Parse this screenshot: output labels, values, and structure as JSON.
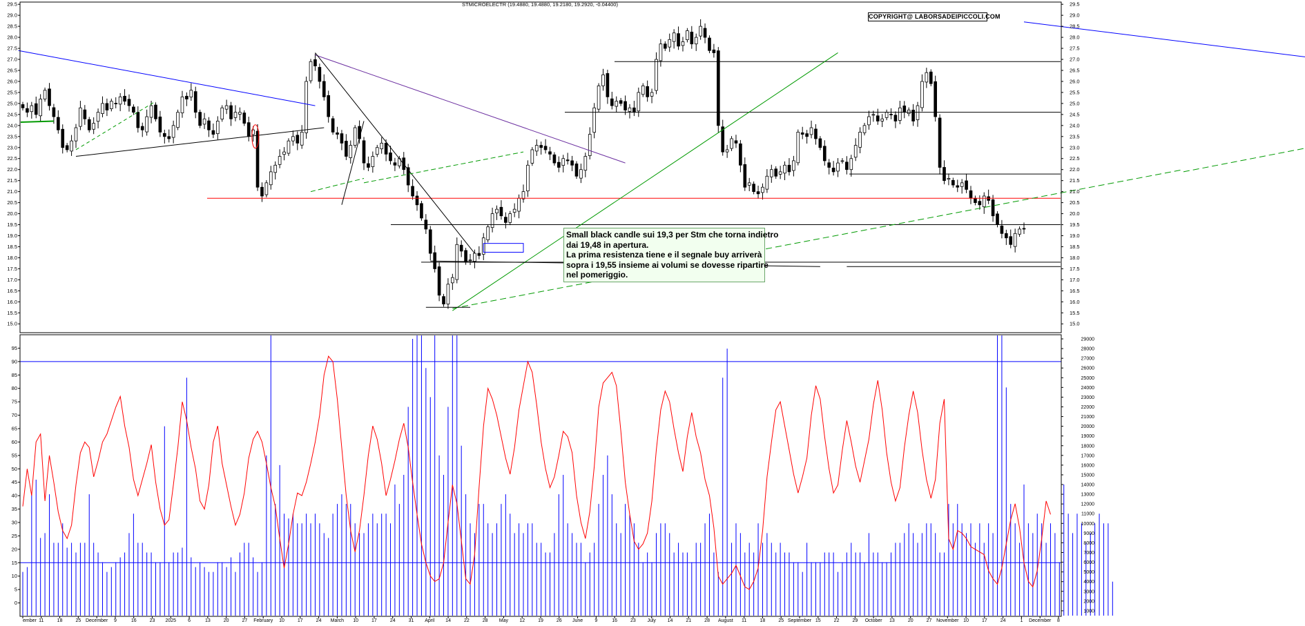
{
  "header": {
    "title": "STMICROELECTR (19.4880, 19.4880, 19.2180, 19.2920, -0.04400)",
    "copyright": "COPYRIGHT@ LABORSADEIPICCOLI.COM"
  },
  "annotation": {
    "lines": [
      "Small black candle sui 19,3 per Stm che torna indietro",
      "dai 19,48 in apertura.",
      "La prima resistenza tiene e il segnale buy arriverà",
      "sopra i 19,55 insieme ai volumi se dovesse ripartire",
      "nel pomeriggio."
    ]
  },
  "colors": {
    "candle": "#000000",
    "indicator": "#ff0000",
    "volume": "#0000ff",
    "trend_blue": "#0000ff",
    "trend_purple": "#6b2fa0",
    "support_green": "#009a00",
    "red_level": "#ff0000",
    "grid": "#dddddd"
  },
  "chart_data": [
    {
      "type": "candlestick",
      "title": "STMICROELECTR (19.4880, 19.4880, 19.2180, 19.2920, -0.04400)",
      "ylim": [
        14.6,
        29.6
      ],
      "y_ticks": [
        15.0,
        15.5,
        16.0,
        16.5,
        17.0,
        17.5,
        18.0,
        18.5,
        19.0,
        19.5,
        20.0,
        20.5,
        21.0,
        21.5,
        22.0,
        22.5,
        23.0,
        23.5,
        24.0,
        24.5,
        25.0,
        25.5,
        26.0,
        26.5,
        27.0,
        27.5,
        28.0,
        28.5,
        29.0,
        29.5
      ],
      "y_tick_labels": [
        "15.0",
        "15.5",
        "16.0",
        "16.5",
        "17.0",
        "17.5",
        "18.0",
        "18.5",
        "19.0",
        "19.5",
        "20.0",
        "20.5",
        "21.0",
        "21.5",
        "22.0",
        "22.5",
        "23.0",
        "23.5",
        "24.0",
        "24.5",
        "25.0",
        "25.5",
        "26.0",
        "26.5",
        "27.0",
        "27.5",
        "28.0",
        "28.5",
        "29.0",
        "29.5"
      ],
      "x_labels": [
        "ember",
        "11",
        "18",
        "25",
        "December",
        "9",
        "16",
        "23",
        "2025",
        "6",
        "13",
        "20",
        "27",
        "February",
        "10",
        "17",
        "24",
        "March",
        "10",
        "17",
        "24",
        "31",
        "April",
        "14",
        "22",
        "28",
        "May",
        "12",
        "19",
        "26",
        "June",
        "9",
        "16",
        "23",
        "July",
        "14",
        "21",
        "28",
        "August",
        "11",
        "18",
        "25",
        "September",
        "15",
        "22",
        "29",
        "October",
        "13",
        "20",
        "27",
        "November",
        "10",
        "17",
        "24",
        "1",
        "December",
        "8"
      ],
      "closes": [
        24.8,
        24.6,
        24.9,
        24.5,
        25.2,
        25.6,
        24.9,
        24.4,
        23.8,
        23.0,
        22.9,
        23.3,
        23.9,
        24.8,
        24.3,
        23.8,
        24.1,
        24.6,
        25.0,
        24.7,
        25.1,
        25.0,
        25.3,
        25.1,
        24.9,
        24.6,
        23.9,
        23.8,
        24.4,
        24.9,
        24.3,
        23.7,
        23.5,
        23.4,
        24.0,
        24.6,
        25.3,
        25.2,
        25.6,
        24.6,
        24.0,
        24.3,
        23.8,
        23.6,
        24.2,
        24.8,
        24.9,
        24.3,
        24.6,
        24.6,
        24.1,
        23.5,
        23.8,
        21.2,
        20.8,
        21.4,
        21.9,
        22.2,
        22.6,
        22.8,
        23.3,
        23.5,
        23.2,
        23.7,
        26.0,
        26.9,
        26.7,
        26.0,
        25.3,
        24.4,
        23.7,
        23.6,
        23.2,
        22.6,
        23.1,
        23.9,
        23.4,
        22.3,
        22.1,
        22.6,
        23.0,
        23.2,
        22.7,
        22.4,
        22.2,
        22.5,
        22.0,
        21.3,
        20.8,
        20.4,
        19.8,
        19.3,
        18.2,
        17.5,
        16.3,
        15.9,
        16.8,
        17.1,
        18.6,
        18.3,
        17.8,
        17.9,
        18.2,
        18.1,
        18.9,
        19.4,
        20.0,
        20.2,
        19.9,
        19.6,
        20.0,
        20.2,
        20.7,
        21.0,
        22.2,
        22.9,
        23.1,
        23.0,
        22.9,
        22.7,
        22.3,
        22.1,
        22.5,
        22.4,
        22.2,
        21.7,
        22.0,
        22.6,
        23.6,
        24.8,
        25.8,
        26.3,
        25.3,
        24.9,
        25.1,
        25.0,
        24.7,
        24.8,
        24.6,
        25.5,
        25.8,
        25.3,
        25.5,
        27.0,
        27.7,
        27.5,
        27.9,
        28.2,
        27.6,
        27.8,
        28.3,
        27.7,
        28.0,
        28.5,
        28.0,
        27.4,
        27.3,
        24.0,
        22.8,
        22.9,
        23.4,
        23.2,
        22.2,
        21.2,
        21.4,
        21.0,
        20.9,
        21.2,
        21.7,
        22.0,
        21.7,
        21.9,
        22.2,
        21.9,
        22.4,
        23.7,
        23.6,
        23.5,
        23.9,
        23.4,
        23.0,
        22.4,
        22.1,
        21.9,
        22.3,
        22.4,
        22.0,
        22.5,
        23.1,
        23.7,
        24.0,
        24.4,
        24.5,
        24.2,
        24.3,
        24.6,
        24.5,
        24.2,
        24.8,
        24.6,
        24.7,
        24.2,
        24.9,
        26.0,
        26.4,
        25.9,
        24.4,
        22.1,
        21.5,
        21.6,
        21.3,
        21.2,
        21.4,
        21.1,
        20.7,
        20.5,
        20.4,
        20.8,
        20.6,
        19.9,
        19.5,
        19.1,
        18.9,
        18.6,
        19.1,
        19.3,
        19.3
      ],
      "horizontal_levels": [
        {
          "value": 26.9,
          "color": "#000000"
        },
        {
          "value": 24.6,
          "color": "#000000"
        },
        {
          "value": 21.8,
          "color": "#000000"
        },
        {
          "value": 20.7,
          "color": "#ff0000"
        },
        {
          "value": 19.5,
          "color": "#000000"
        },
        {
          "value": 17.8,
          "color": "#000000"
        }
      ]
    },
    {
      "type": "line",
      "ylim": [
        -5,
        100
      ],
      "y_ticks": [
        0,
        5,
        10,
        15,
        20,
        25,
        30,
        35,
        40,
        45,
        50,
        55,
        60,
        65,
        70,
        75,
        80,
        85,
        90,
        95
      ],
      "y_tick_labels": [
        "0",
        "5",
        "10",
        "15",
        "20",
        "25",
        "30",
        "35",
        "40",
        "45",
        "50",
        "55",
        "60",
        "65",
        "70",
        "75",
        "80",
        "85",
        "90",
        "95"
      ],
      "reference_levels": [
        90,
        15
      ],
      "oscillator": [
        36,
        50,
        40,
        60,
        63,
        38,
        55,
        45,
        34,
        27,
        24,
        29,
        44,
        56,
        60,
        58,
        47,
        53,
        60,
        63,
        68,
        73,
        77,
        66,
        58,
        46,
        40,
        46,
        52,
        59,
        45,
        35,
        29,
        31,
        44,
        58,
        75,
        68,
        58,
        50,
        38,
        35,
        44,
        60,
        66,
        52,
        44,
        36,
        29,
        33,
        41,
        54,
        61,
        64,
        60,
        52,
        43,
        36,
        24,
        13,
        22,
        33,
        41,
        40,
        45,
        52,
        60,
        70,
        85,
        92,
        90,
        76,
        58,
        40,
        27,
        19,
        27,
        40,
        55,
        66,
        61,
        52,
        40,
        46,
        53,
        61,
        67,
        58,
        45,
        33,
        22,
        15,
        10,
        8,
        9,
        15,
        30,
        44,
        37,
        23,
        9,
        7,
        18,
        43,
        66,
        80,
        76,
        70,
        62,
        54,
        48,
        58,
        72,
        81,
        90,
        86,
        74,
        60,
        50,
        43,
        47,
        55,
        64,
        62,
        56,
        40,
        30,
        24,
        34,
        51,
        73,
        82,
        84,
        86,
        81,
        64,
        45,
        33,
        23,
        20,
        22,
        26,
        38,
        57,
        72,
        79,
        75,
        65,
        56,
        49,
        62,
        71,
        62,
        56,
        46,
        40,
        28,
        10,
        7,
        9,
        11,
        14,
        10,
        6,
        5,
        8,
        13,
        27,
        47,
        60,
        72,
        75,
        66,
        57,
        48,
        41,
        47,
        54,
        70,
        81,
        76,
        62,
        50,
        41,
        44,
        57,
        68,
        60,
        51,
        45,
        53,
        61,
        74,
        83,
        72,
        56,
        45,
        38,
        43,
        58,
        70,
        79,
        71,
        57,
        46,
        39,
        46,
        67,
        76,
        24,
        20,
        27,
        26,
        24,
        21,
        20,
        19,
        18,
        12,
        9,
        7,
        13,
        22,
        31,
        37,
        28,
        15,
        8,
        6,
        12,
        24,
        38,
        33
      ],
      "volume": [
        5,
        5.5,
        13,
        14.5,
        8.5,
        9,
        13,
        8,
        8,
        10,
        7.5,
        8,
        7,
        8,
        8,
        13,
        8,
        7,
        6,
        5,
        5.5,
        6,
        6.5,
        7,
        9,
        11,
        8,
        8,
        7,
        7,
        6,
        6,
        20,
        6,
        7,
        7,
        7.5,
        25,
        6.5,
        5.5,
        6,
        5.5,
        5,
        5,
        6,
        6,
        5.5,
        6.5,
        5,
        7,
        8,
        8,
        6.5,
        5,
        6,
        17,
        63,
        12,
        16,
        11,
        10.5,
        11,
        10,
        10,
        11,
        10,
        11,
        10,
        9,
        8.5,
        11,
        12,
        13,
        12,
        12,
        10,
        9,
        9,
        10,
        11,
        10,
        11,
        11,
        10,
        14,
        12,
        15,
        22,
        29,
        30,
        37,
        26,
        23,
        42,
        17,
        15,
        22,
        30,
        52,
        18,
        13,
        10,
        9,
        12,
        12,
        10,
        9,
        10,
        12,
        13,
        11,
        9,
        10,
        9,
        10,
        10,
        8,
        8,
        7,
        7,
        9,
        13,
        15,
        10,
        9,
        8,
        8,
        6,
        7,
        8,
        12,
        15,
        17,
        13,
        10,
        9,
        12,
        11,
        10,
        8,
        6,
        7,
        6,
        9,
        10,
        10,
        9,
        7,
        8,
        7,
        7,
        6,
        8,
        8,
        10,
        11,
        7,
        5,
        25,
        28,
        8,
        10,
        9,
        7,
        8,
        7,
        10,
        8,
        9,
        8,
        7,
        8,
        7,
        7,
        6,
        6,
        5,
        8,
        6,
        6,
        6,
        7,
        7,
        7,
        5,
        6,
        7,
        8,
        7,
        7,
        6,
        9,
        7,
        7,
        6,
        6,
        7,
        8,
        8,
        9,
        10,
        9,
        8,
        9,
        10,
        10,
        9,
        7,
        7,
        12,
        10,
        12,
        10,
        9,
        10,
        8,
        10,
        8,
        10,
        9,
        35,
        30,
        24,
        12,
        10,
        8,
        14,
        10,
        9,
        11,
        10,
        8,
        10,
        9,
        6,
        14,
        11,
        9,
        11,
        10,
        8,
        9,
        10,
        11,
        10,
        10,
        4
      ]
    }
  ]
}
